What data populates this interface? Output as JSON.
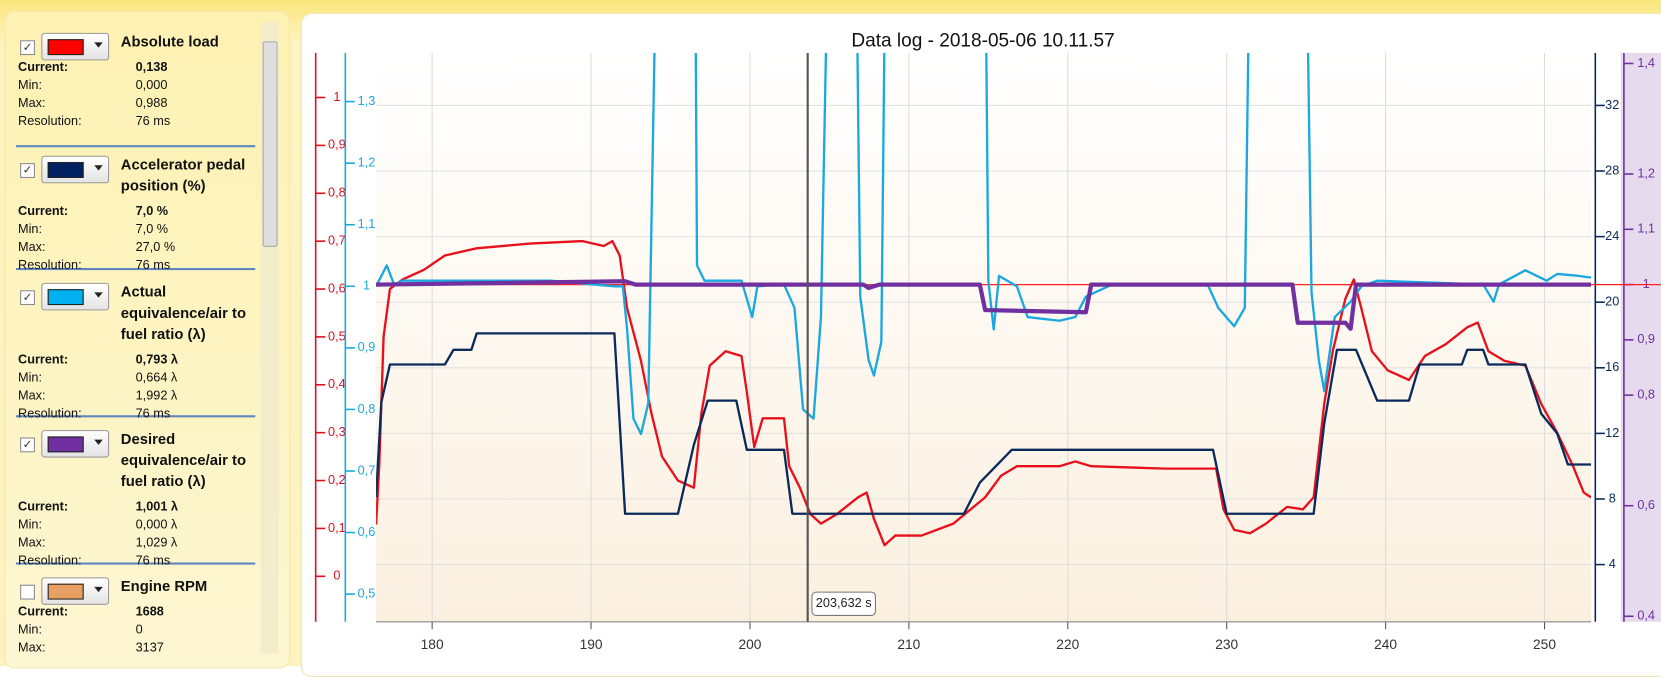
{
  "sidebar": {
    "items": [
      {
        "name": "Absolute load",
        "checked": true,
        "color": "#ff0000",
        "rows": [
          {
            "label": "Current:",
            "value": "0,138"
          },
          {
            "label": "Min:",
            "value": "0,000"
          },
          {
            "label": "Max:",
            "value": "0,988"
          },
          {
            "label": "Resolution:",
            "value": "76 ms"
          }
        ]
      },
      {
        "name": "Accelerator pedal position (%)",
        "checked": true,
        "color": "#002060",
        "rows": [
          {
            "label": "Current:",
            "value": "7,0 %"
          },
          {
            "label": "Min:",
            "value": "7,0 %"
          },
          {
            "label": "Max:",
            "value": "27,0 %"
          },
          {
            "label": "Resolution:",
            "value": "76 ms"
          }
        ]
      },
      {
        "name": "Actual equivalence/air to fuel ratio (λ)",
        "checked": true,
        "color": "#00b0f0",
        "rows": [
          {
            "label": "Current:",
            "value": "0,793 λ"
          },
          {
            "label": "Min:",
            "value": "0,664 λ"
          },
          {
            "label": "Max:",
            "value": "1,992 λ"
          },
          {
            "label": "Resolution:",
            "value": "76 ms"
          }
        ]
      },
      {
        "name": "Desired equivalence/air to fuel ratio (λ)",
        "checked": true,
        "color": "#7030a0",
        "rows": [
          {
            "label": "Current:",
            "value": "1,001 λ"
          },
          {
            "label": "Min:",
            "value": "0,000 λ"
          },
          {
            "label": "Max:",
            "value": "1,029 λ"
          },
          {
            "label": "Resolution:",
            "value": "76 ms"
          }
        ]
      },
      {
        "name": "Engine RPM",
        "checked": false,
        "color": "#e8a062",
        "rows": [
          {
            "label": "Current:",
            "value": "1688"
          },
          {
            "label": "Min:",
            "value": "0"
          },
          {
            "label": "Max:",
            "value": "3137"
          }
        ]
      }
    ]
  },
  "chart_data": {
    "type": "line",
    "title": "Data log - 2018-05-06 10.11.57",
    "xlim": [
      176.47,
      252.93
    ],
    "xticks": [
      180,
      190,
      200,
      210,
      220,
      230,
      240,
      250
    ],
    "cursor": {
      "value": 203.632,
      "label": "203,632 s"
    },
    "reference_line": {
      "value": 1,
      "axis": 3,
      "color": "#ff2020"
    },
    "axes": [
      {
        "color": "#e0101c",
        "ylim": [
          -0.095,
          1.093
        ],
        "yticks": [
          0,
          {
            "value": 0.1,
            "label": "0,1"
          },
          {
            "value": 0.2,
            "label": "0,2"
          },
          {
            "value": 0.3,
            "label": "0,3"
          },
          {
            "value": 0.4,
            "label": "0,4"
          },
          {
            "value": 0.5,
            "label": "0,5"
          },
          {
            "value": 0.6,
            "label": "0,6"
          },
          {
            "value": 0.7,
            "label": "0,7"
          },
          {
            "value": 0.8,
            "label": "0,8"
          },
          {
            "value": 0.9,
            "label": "0,9"
          },
          1
        ]
      },
      {
        "color": "#1aa8e0",
        "ylim": [
          0.455,
          1.379
        ],
        "yticks": [
          {
            "value": 0.5,
            "label": "0,5"
          },
          {
            "value": 0.6,
            "label": "0,6"
          },
          {
            "value": 0.7,
            "label": "0,7"
          },
          {
            "value": 0.8,
            "label": "0,8"
          },
          {
            "value": 0.9,
            "label": "0,9"
          },
          1,
          {
            "value": 1.1,
            "label": "1,1"
          },
          {
            "value": 1.2,
            "label": "1,2"
          },
          {
            "value": 1.3,
            "label": "1,3"
          }
        ]
      },
      {
        "color": "#0a2a5c",
        "ylim": [
          0.51,
          35.2
        ],
        "grid": true,
        "yticks": [
          4,
          8,
          12,
          16,
          20,
          24,
          28,
          32
        ]
      },
      {
        "color": "#7030a0",
        "ylim": [
          0.39,
          1.419
        ],
        "yticks": [
          {
            "value": 0.4,
            "label": "0,4"
          },
          {
            "value": 0.6,
            "label": "0,6"
          },
          {
            "value": 0.8,
            "label": "0,8"
          },
          {
            "value": 0.9,
            "label": "0,9"
          },
          1,
          {
            "value": 1.1,
            "label": "1,1"
          },
          {
            "value": 1.2,
            "label": "1,2"
          },
          {
            "value": 1.4,
            "label": "1,4"
          }
        ]
      }
    ],
    "series": [
      {
        "name": "Absolute load",
        "color": "#e8101c",
        "axis": 0,
        "x": [
          176.47,
          176.67,
          176.94,
          177.34,
          178.14,
          179.47,
          180.8,
          182.8,
          186.14,
          189.47,
          190.8,
          191.34,
          191.8,
          192.27,
          193.14,
          193.8,
          194.47,
          195.47,
          196.47,
          196.94,
          197.47,
          198.47,
          199.47,
          199.8,
          200.27,
          200.8,
          202.14,
          202.47,
          203.14,
          203.8,
          204.47,
          205.47,
          206.8,
          207.34,
          207.8,
          208.47,
          209.14,
          210.8,
          212.8,
          214.8,
          215.8,
          216.8,
          219.47,
          220.47,
          221.47,
          226.14,
          229.34,
          229.8,
          230.47,
          231.47,
          232.47,
          233.8,
          234.8,
          235.47,
          236.14,
          236.67,
          237.47,
          238.0,
          238.47,
          239.14,
          240.14,
          241.47,
          242.47,
          243.8,
          245.14,
          245.8,
          246.47,
          247.47,
          248.8,
          249.8,
          250.8,
          251.8,
          252.47,
          252.93
        ],
        "values": [
          0.108,
          0.23,
          0.5,
          0.6,
          0.62,
          0.64,
          0.67,
          0.685,
          0.695,
          0.7,
          0.69,
          0.7,
          0.67,
          0.56,
          0.45,
          0.34,
          0.25,
          0.2,
          0.185,
          0.34,
          0.44,
          0.47,
          0.46,
          0.385,
          0.27,
          0.33,
          0.33,
          0.23,
          0.185,
          0.13,
          0.11,
          0.13,
          0.165,
          0.175,
          0.12,
          0.065,
          0.085,
          0.085,
          0.11,
          0.165,
          0.21,
          0.23,
          0.23,
          0.24,
          0.23,
          0.225,
          0.225,
          0.14,
          0.097,
          0.09,
          0.11,
          0.145,
          0.14,
          0.165,
          0.36,
          0.47,
          0.58,
          0.62,
          0.56,
          0.47,
          0.43,
          0.41,
          0.46,
          0.485,
          0.52,
          0.53,
          0.47,
          0.45,
          0.44,
          0.36,
          0.3,
          0.23,
          0.175,
          0.165
        ]
      },
      {
        "name": "Accelerator pedal position (%)",
        "color": "#0a2a5c",
        "axis": 2,
        "x": [
          176.47,
          176.8,
          177.34,
          180.8,
          181.34,
          182.47,
          182.8,
          191.47,
          192.14,
          195.47,
          196.47,
          197.34,
          199.14,
          199.8,
          202.14,
          202.67,
          213.47,
          214.47,
          215.47,
          216.47,
          229.14,
          230.0,
          235.47,
          236.14,
          236.94,
          238.14,
          239.47,
          241.47,
          242.14,
          244.8,
          245.14,
          246.14,
          246.47,
          248.8,
          249.8,
          250.8,
          251.47,
          252.93
        ],
        "values": [
          8.1,
          13.9,
          16.2,
          16.2,
          17.1,
          17.1,
          18.1,
          18.1,
          7.1,
          7.1,
          11.3,
          14.0,
          14.0,
          11.0,
          11.0,
          7.1,
          7.1,
          9.0,
          10.0,
          11.0,
          11.0,
          7.1,
          7.1,
          12.6,
          17.1,
          17.1,
          14.0,
          14.0,
          16.2,
          16.2,
          17.1,
          17.1,
          16.2,
          16.2,
          13.2,
          12.0,
          10.1,
          10.1
        ]
      },
      {
        "name": "Actual equivalence/air to fuel ratio (λ)",
        "color": "#1aa8e0",
        "axis": 1,
        "x": [
          176.47,
          177.14,
          177.6,
          178.14,
          182.8,
          187.47,
          191.47,
          192.0,
          192.27,
          192.67,
          193.14,
          193.6,
          194.14,
          196.54,
          196.67,
          197.14,
          199.47,
          200.14,
          200.47,
          202.14,
          202.8,
          203.34,
          204.0,
          204.47,
          204.94,
          206.67,
          206.94,
          207.47,
          207.8,
          208.27,
          208.54,
          214.8,
          215.0,
          215.34,
          215.67,
          216.8,
          217.47,
          219.47,
          220.47,
          221.14,
          222.8,
          228.8,
          229.47,
          230.47,
          231.14,
          231.47,
          235.0,
          235.34,
          235.8,
          236.14,
          236.8,
          237.8,
          238.47,
          239.47,
          246.14,
          246.8,
          247.14,
          248.8,
          250.14,
          250.8,
          252.14,
          252.93
        ],
        "values": [
          1.0,
          1.034,
          1.003,
          1.009,
          1.009,
          1.009,
          1.0,
          1.0,
          0.93,
          0.785,
          0.76,
          0.81,
          1.6,
          1.6,
          1.034,
          1.009,
          1.009,
          0.95,
          1.0,
          1.003,
          0.965,
          0.8,
          0.785,
          0.95,
          1.6,
          1.6,
          0.983,
          0.88,
          0.855,
          0.91,
          1.6,
          1.6,
          1.009,
          0.93,
          1.017,
          1.0,
          0.95,
          0.944,
          0.95,
          0.983,
          1.003,
          1.003,
          0.965,
          0.935,
          0.965,
          1.6,
          1.6,
          0.99,
          0.88,
          0.83,
          0.95,
          0.975,
          1.0,
          1.009,
          1.003,
          0.975,
          1.003,
          1.026,
          1.009,
          1.02,
          1.017,
          1.014
        ]
      },
      {
        "name": "Desired equivalence/air to fuel ratio (λ)",
        "color": "#7030a0",
        "axis": 3,
        "x": [
          176.47,
          192.14,
          192.8,
          207.14,
          207.47,
          208.14,
          214.47,
          214.8,
          221.14,
          221.47,
          234.14,
          234.47,
          237.47,
          237.8,
          238.14,
          252.93
        ],
        "values": [
          1.0,
          1.006,
          1.0,
          1.0,
          0.994,
          1.0,
          1.0,
          0.954,
          0.95,
          1.0,
          1.0,
          0.931,
          0.931,
          0.92,
          1.0,
          1.0
        ]
      }
    ]
  }
}
